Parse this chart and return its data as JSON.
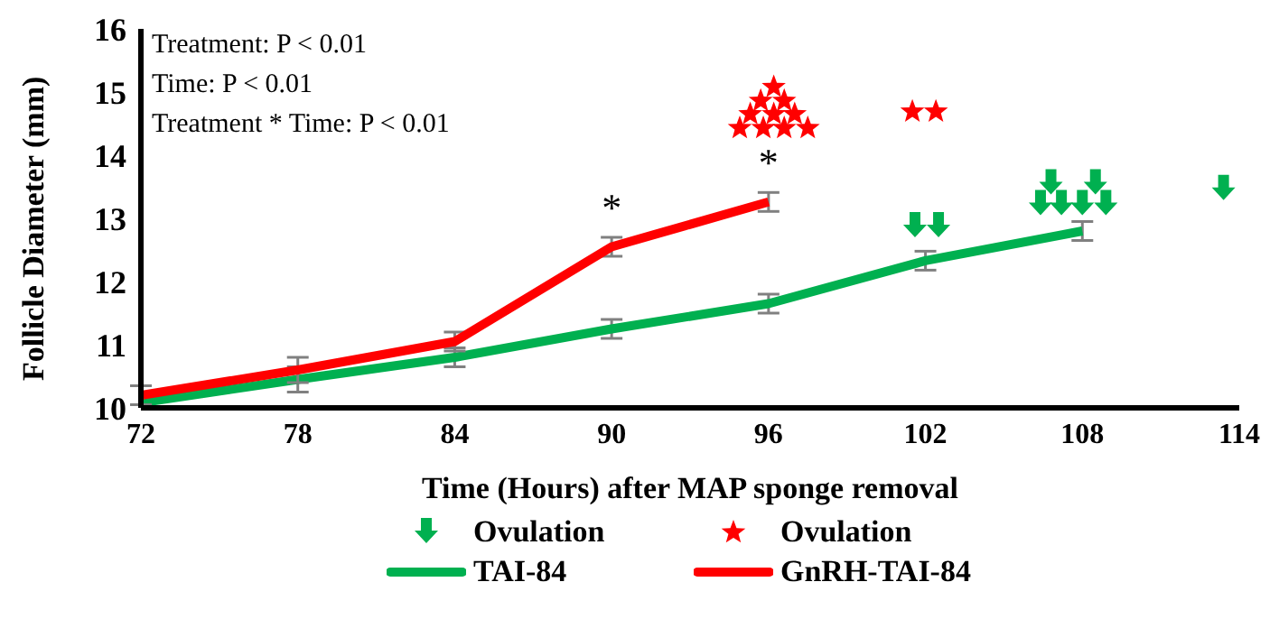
{
  "chart_data": {
    "type": "line",
    "xlabel": "Time (Hours) after MAP sponge removal",
    "ylabel": "Follicle Diameter (mm)",
    "xlim": [
      72,
      114
    ],
    "xticks": [
      72,
      78,
      84,
      90,
      96,
      102,
      108,
      114
    ],
    "ylim": [
      10,
      16
    ],
    "yticks": [
      10,
      11,
      12,
      13,
      14,
      15,
      16
    ],
    "grid": false,
    "legend": "bottom",
    "line_style": "solid",
    "annotations": [
      "Treatment: P < 0.01",
      "Time: P < 0.01",
      "Treatment * Time: P < 0.01",
      {
        "text": "*",
        "x": 90,
        "y": 12.55
      },
      {
        "text": "*",
        "x": 96,
        "y": 13.26
      }
    ],
    "series": [
      {
        "type": "scatter",
        "name": "Ovulation",
        "color": "#00b050",
        "x": [
          101.6,
          102.5,
          106.8,
          108.5,
          106.4,
          107.2,
          108.0,
          108.9,
          113.4
        ],
        "values": [
          12.87,
          12.87,
          13.55,
          13.55,
          13.22,
          13.22,
          13.22,
          13.22,
          13.46
        ]
      },
      {
        "type": "scatter",
        "name": "Ovulation",
        "color": "#ff0000",
        "marker": "star",
        "x": [
          96.2,
          95.7,
          96.6,
          95.3,
          96.2,
          97.0,
          94.9,
          95.8,
          96.6,
          97.5,
          101.5,
          102.4
        ],
        "values": [
          15.08,
          14.86,
          14.86,
          14.65,
          14.65,
          14.65,
          14.43,
          14.43,
          14.43,
          14.43,
          14.69,
          14.69
        ]
      },
      {
        "name": "TAI-84",
        "color": "#00b050",
        "x": [
          72,
          78,
          84,
          90,
          96,
          102,
          108
        ],
        "values": [
          10.08,
          10.45,
          10.8,
          11.25,
          11.65,
          12.33,
          12.8
        ],
        "errors": [
          null,
          0.2,
          0.15,
          0.15,
          0.15,
          0.15,
          0.15
        ]
      },
      {
        "name": "GnRH-TAI-84",
        "color": "#ff0000",
        "x": [
          72,
          78,
          84,
          90,
          96
        ],
        "values": [
          10.2,
          10.6,
          11.05,
          12.55,
          13.26
        ],
        "errors": [
          0.15,
          0.2,
          0.15,
          0.15,
          0.15
        ]
      }
    ]
  }
}
